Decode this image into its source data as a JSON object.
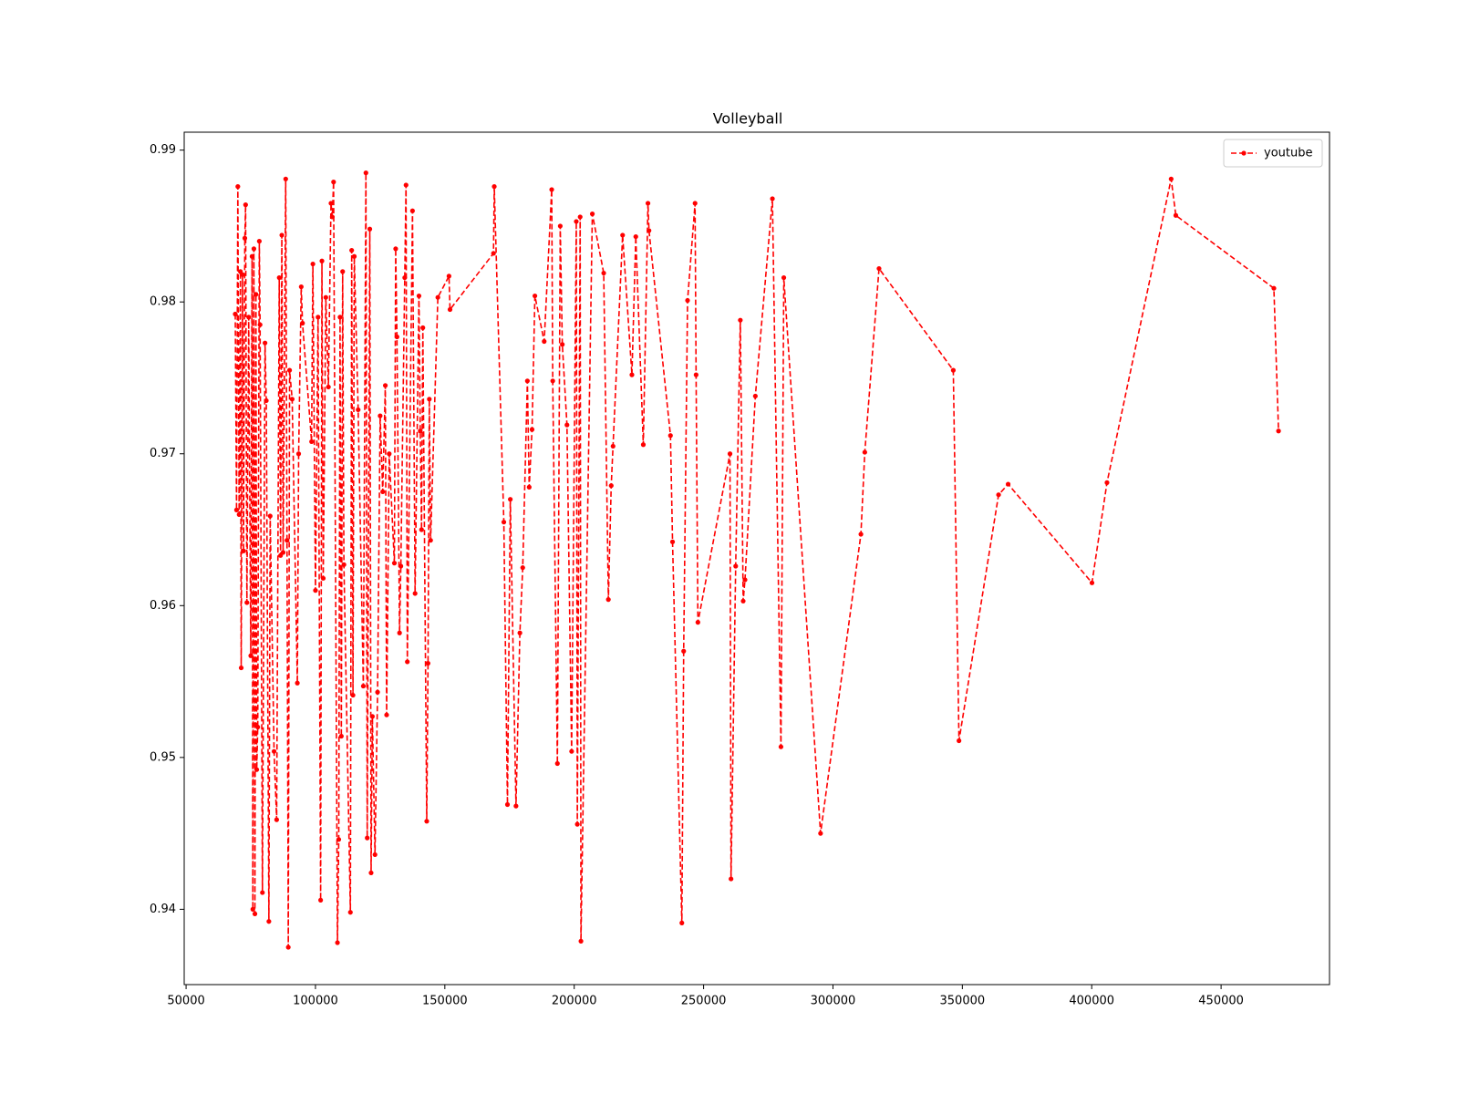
{
  "chart_data": {
    "type": "line",
    "title": "Volleyball",
    "x": [
      69000,
      69500,
      70000,
      70500,
      71000,
      71300,
      71800,
      72200,
      72700,
      73000,
      73500,
      74200,
      75000,
      75500,
      75800,
      76200,
      76600,
      77000,
      77300,
      77700,
      78300,
      78600,
      79500,
      80500,
      81000,
      82000,
      82500,
      84000,
      85000,
      86000,
      86500,
      87000,
      87500,
      88500,
      89000,
      89500,
      90000,
      91000,
      93000,
      93500,
      94500,
      95000,
      98500,
      99000,
      100000,
      101000,
      102000,
      102500,
      103000,
      104000,
      105000,
      106000,
      106500,
      107000,
      108500,
      109000,
      109500,
      110000,
      110500,
      111000,
      113500,
      114000,
      114500,
      115000,
      116500,
      118500,
      119500,
      120000,
      121000,
      121500,
      122000,
      123000,
      124000,
      125000,
      126000,
      127000,
      127500,
      128500,
      130500,
      131000,
      131500,
      132500,
      133000,
      134500,
      135000,
      135500,
      137500,
      138500,
      140000,
      140500,
      141000,
      141500,
      143000,
      143500,
      144000,
      144500,
      147300,
      151600,
      152000,
      168800,
      169100,
      172800,
      174200,
      175300,
      177500,
      179000,
      180100,
      181900,
      182600,
      183700,
      184800,
      188400,
      191300,
      191700,
      193500,
      194600,
      195400,
      197200,
      199000,
      200800,
      201200,
      202300,
      202600,
      207000,
      211400,
      213200,
      214300,
      215000,
      218700,
      222300,
      223800,
      226700,
      228500,
      228900,
      237200,
      238000,
      241600,
      242300,
      243800,
      246700,
      247100,
      247800,
      260200,
      260600,
      262400,
      264200,
      265300,
      266000,
      270000,
      276600,
      279900,
      281000,
      295200,
      310800,
      312300,
      317800,
      346500,
      348700,
      364000,
      367700,
      400100,
      405900,
      430700,
      432500,
      470400,
      472200
    ],
    "series": [
      {
        "name": "youtube",
        "color": "#ff0000",
        "values": [
          0.9792,
          0.9663,
          0.9876,
          0.966,
          0.982,
          0.9559,
          0.9818,
          0.9636,
          0.9842,
          0.9864,
          0.9602,
          0.979,
          0.9567,
          0.983,
          0.94,
          0.9835,
          0.9397,
          0.9805,
          0.9492,
          0.952,
          0.984,
          0.9785,
          0.9411,
          0.9773,
          0.9735,
          0.9392,
          0.9659,
          0.9504,
          0.9459,
          0.9816,
          0.9633,
          0.9844,
          0.9635,
          0.9881,
          0.9643,
          0.9375,
          0.9755,
          0.9736,
          0.9549,
          0.97,
          0.981,
          0.9786,
          0.9708,
          0.9825,
          0.961,
          0.979,
          0.9406,
          0.9827,
          0.9618,
          0.9803,
          0.9744,
          0.9865,
          0.9856,
          0.9879,
          0.9378,
          0.9446,
          0.979,
          0.9514,
          0.982,
          0.9627,
          0.9398,
          0.9834,
          0.9541,
          0.983,
          0.9729,
          0.9547,
          0.9885,
          0.9447,
          0.9848,
          0.9424,
          0.9527,
          0.9436,
          0.9543,
          0.9725,
          0.9675,
          0.9745,
          0.9528,
          0.97,
          0.9628,
          0.9835,
          0.9777,
          0.9582,
          0.9626,
          0.9816,
          0.9877,
          0.9563,
          0.986,
          0.9608,
          0.9804,
          0.9715,
          0.965,
          0.9783,
          0.9458,
          0.9562,
          0.9736,
          0.9643,
          0.9803,
          0.9817,
          0.9795,
          0.9832,
          0.9876,
          0.9655,
          0.9469,
          0.967,
          0.9468,
          0.9582,
          0.9625,
          0.9748,
          0.9678,
          0.9716,
          0.9804,
          0.9774,
          0.9874,
          0.9748,
          0.9496,
          0.985,
          0.9772,
          0.9719,
          0.9504,
          0.9853,
          0.9456,
          0.9856,
          0.9379,
          0.9858,
          0.9819,
          0.9604,
          0.9679,
          0.9705,
          0.9844,
          0.9752,
          0.9843,
          0.9706,
          0.9865,
          0.9847,
          0.9712,
          0.9642,
          0.9391,
          0.957,
          0.9801,
          0.9865,
          0.9752,
          0.9589,
          0.97,
          0.942,
          0.9626,
          0.9788,
          0.9603,
          0.9617,
          0.9738,
          0.9868,
          0.9507,
          0.9816,
          0.945,
          0.9647,
          0.9701,
          0.9822,
          0.9755,
          0.9511,
          0.9673,
          0.968,
          0.9615,
          0.9681,
          0.9881,
          0.9857,
          0.9809,
          0.9715
        ]
      }
    ],
    "xlim": [
      49270,
      491900
    ],
    "ylim": [
      0.93504,
      0.99118
    ],
    "xticks": [
      50000,
      100000,
      150000,
      200000,
      250000,
      300000,
      350000,
      400000,
      450000
    ],
    "yticks": [
      0.94,
      0.95,
      0.96,
      0.97,
      0.98,
      0.99
    ],
    "legend": "upper right",
    "line_style": "dashed",
    "marker": true
  }
}
